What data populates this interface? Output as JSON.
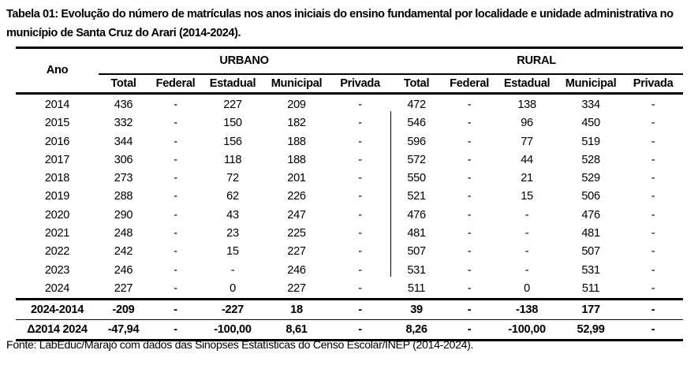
{
  "title": "Tabela 01: Evolução do número de matrículas nos anos iniciais do ensino fundamental por localidade e unidade administrativa no município de Santa Cruz do Arari (2014-2024).",
  "table": {
    "year_header": "Ano",
    "groups": [
      "URBANO",
      "RURAL"
    ],
    "subheaders": [
      "Total",
      "Federal",
      "Estadual",
      "Municipal",
      "Privada",
      "Total",
      "Federal",
      "Estadual",
      "Municipal",
      "Privada"
    ],
    "rows": [
      [
        "2014",
        "436",
        "-",
        "227",
        "209",
        "-",
        "472",
        "-",
        "138",
        "334",
        "-"
      ],
      [
        "2015",
        "332",
        "-",
        "150",
        "182",
        "-",
        "546",
        "-",
        "96",
        "450",
        "-"
      ],
      [
        "2016",
        "344",
        "-",
        "156",
        "188",
        "-",
        "596",
        "-",
        "77",
        "519",
        "-"
      ],
      [
        "2017",
        "306",
        "-",
        "118",
        "188",
        "-",
        "572",
        "-",
        "44",
        "528",
        "-"
      ],
      [
        "2018",
        "273",
        "-",
        "72",
        "201",
        "-",
        "550",
        "-",
        "21",
        "529",
        "-"
      ],
      [
        "2019",
        "288",
        "-",
        "62",
        "226",
        "-",
        "521",
        "-",
        "15",
        "506",
        "-"
      ],
      [
        "2020",
        "290",
        "-",
        "43",
        "247",
        "-",
        "476",
        "-",
        "-",
        "476",
        "-"
      ],
      [
        "2021",
        "248",
        "-",
        "23",
        "225",
        "-",
        "481",
        "-",
        "-",
        "481",
        "-"
      ],
      [
        "2022",
        "242",
        "-",
        "15",
        "227",
        "-",
        "507",
        "-",
        "-",
        "507",
        "-"
      ],
      [
        "2023",
        "246",
        "-",
        "-",
        "246",
        "-",
        "531",
        "-",
        "-",
        "531",
        "-"
      ],
      [
        "2024",
        "227",
        "-",
        "0",
        "227",
        "-",
        "511",
        "-",
        "0",
        "511",
        "-"
      ]
    ],
    "difference_row": [
      "2024-2014",
      "-209",
      "-",
      "-227",
      "18",
      "-",
      "39",
      "-",
      "-138",
      "177",
      "-"
    ],
    "percent_row": [
      "Δ2014 2024",
      "-47,94",
      "-",
      "-100,00",
      "8,61",
      "-",
      "8,26",
      "-",
      "-100,00",
      "52,99",
      "-"
    ]
  },
  "source": "Fonte: LabEduc/Marajó com dados das Sinopses Estatísticas do Censo Escolar/INEP (2014-2024)."
}
